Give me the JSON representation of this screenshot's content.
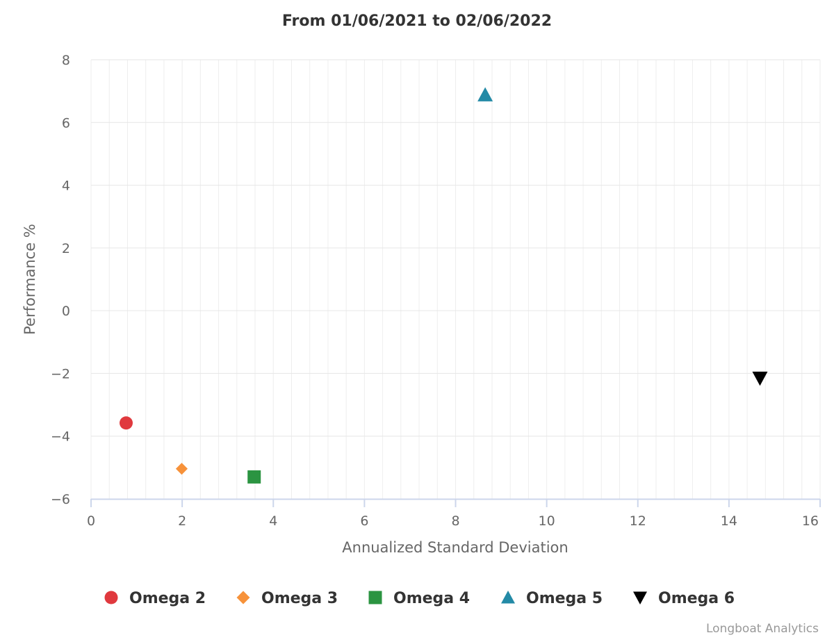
{
  "chart_data": {
    "type": "scatter",
    "title": "From 01/06/2021 to 02/06/2022",
    "xlabel": "Annualized Standard Deviation",
    "ylabel": "Performance %",
    "xlim": [
      0,
      16
    ],
    "ylim": [
      -6,
      8
    ],
    "x_ticks": [
      0,
      2,
      4,
      6,
      8,
      10,
      12,
      14,
      16
    ],
    "y_ticks": [
      8,
      6,
      4,
      2,
      0,
      -2,
      -4,
      -6
    ],
    "x_minor_step": 0.4,
    "grid": true,
    "legend_position": "bottom",
    "series": [
      {
        "name": "Omega 2",
        "marker": "circle",
        "color": "#e0393e",
        "x": 0.77,
        "y": -3.58
      },
      {
        "name": "Omega 3",
        "marker": "diamond",
        "color": "#f7923a",
        "x": 1.99,
        "y": -5.04
      },
      {
        "name": "Omega 4",
        "marker": "square",
        "color": "#2b9441",
        "x": 3.58,
        "y": -5.3
      },
      {
        "name": "Omega 5",
        "marker": "triangle-up",
        "color": "#238aa6",
        "x": 8.65,
        "y": 6.88
      },
      {
        "name": "Omega 6",
        "marker": "triangle-down",
        "color": "#000000",
        "x": 14.68,
        "y": -2.15
      }
    ]
  },
  "credits": "Longboat Analytics"
}
